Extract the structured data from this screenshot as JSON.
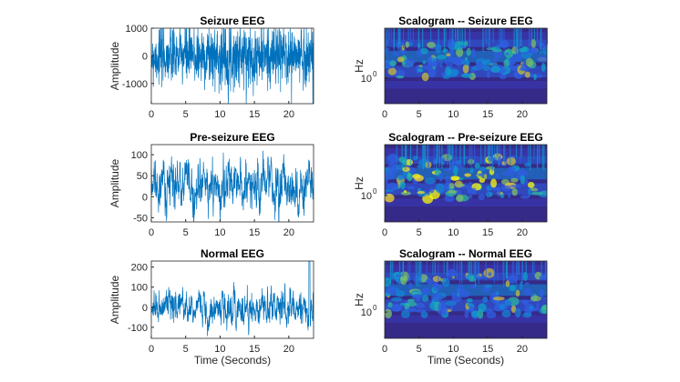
{
  "chart_data": [
    {
      "type": "line",
      "title": "Seizure EEG",
      "xlabel": "",
      "ylabel": "Amplitude",
      "xlim": [
        0,
        23.6
      ],
      "ylim": [
        -1730,
        1000
      ],
      "xticks": [
        "0",
        "5",
        "10",
        "15",
        "20"
      ],
      "xtick_values": [
        0,
        5,
        10,
        15,
        20
      ],
      "yticks": [
        "1000",
        "0",
        "-1000"
      ],
      "ytick_values": [
        1000,
        0,
        -1000
      ],
      "color": "#0072BD",
      "amplitude_range": [
        -1730,
        1000
      ]
    },
    {
      "type": "heatmap",
      "title": "Scalogram -- Seizure EEG",
      "xlabel": "",
      "ylabel": "Hz",
      "xlim": [
        0,
        23.6
      ],
      "y_scale": "log",
      "xticks": [
        "0",
        "5",
        "10",
        "15",
        "20"
      ],
      "xtick_values": [
        0,
        5,
        10,
        15,
        20
      ],
      "ytick_label": "10",
      "ytick_exp": "0",
      "colormap": "parula"
    },
    {
      "type": "line",
      "title": "Pre-seizure EEG",
      "xlabel": "",
      "ylabel": "Amplitude",
      "xlim": [
        0,
        23.6
      ],
      "ylim": [
        -60,
        124
      ],
      "xticks": [
        "0",
        "5",
        "10",
        "15",
        "20"
      ],
      "xtick_values": [
        0,
        5,
        10,
        15,
        20
      ],
      "yticks": [
        "100",
        "50",
        "0",
        "-50"
      ],
      "ytick_values": [
        100,
        50,
        0,
        -50
      ],
      "color": "#0072BD",
      "amplitude_range": [
        -60,
        124
      ]
    },
    {
      "type": "heatmap",
      "title": "Scalogram -- Pre-seizure EEG",
      "xlabel": "",
      "ylabel": "Hz",
      "xlim": [
        0,
        23.6
      ],
      "y_scale": "log",
      "xticks": [
        "0",
        "5",
        "10",
        "15",
        "20"
      ],
      "xtick_values": [
        0,
        5,
        10,
        15,
        20
      ],
      "ytick_label": "10",
      "ytick_exp": "0",
      "colormap": "parula"
    },
    {
      "type": "line",
      "title": "Normal EEG",
      "xlabel": "Time (Seconds)",
      "ylabel": "Amplitude",
      "xlim": [
        0,
        23.6
      ],
      "ylim": [
        -155,
        230
      ],
      "xticks": [
        "0",
        "5",
        "10",
        "15",
        "20"
      ],
      "xtick_values": [
        0,
        5,
        10,
        15,
        20
      ],
      "yticks": [
        "200",
        "100",
        "0",
        "-100"
      ],
      "ytick_values": [
        200,
        100,
        0,
        -100
      ],
      "color": "#0072BD",
      "amplitude_range": [
        -155,
        230
      ]
    },
    {
      "type": "heatmap",
      "title": "Scalogram -- Normal EEG",
      "xlabel": "Time (Seconds)",
      "ylabel": "Hz",
      "xlim": [
        0,
        23.6
      ],
      "y_scale": "log",
      "xticks": [
        "0",
        "5",
        "10",
        "15",
        "20"
      ],
      "xtick_values": [
        0,
        5,
        10,
        15,
        20
      ],
      "ytick_label": "10",
      "ytick_exp": "0",
      "colormap": "parula"
    }
  ]
}
